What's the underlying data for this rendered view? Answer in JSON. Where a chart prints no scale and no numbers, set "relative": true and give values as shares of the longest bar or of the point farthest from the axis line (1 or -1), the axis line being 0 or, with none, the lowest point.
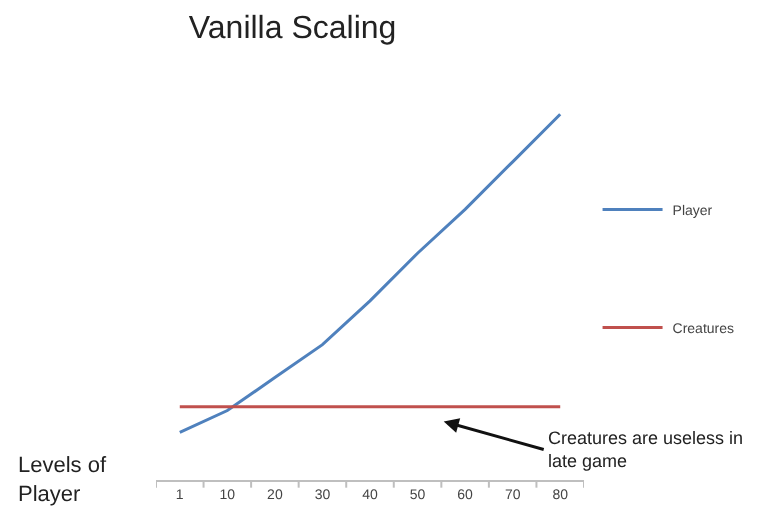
{
  "chart_data": {
    "type": "line",
    "title": "Vanilla Scaling",
    "xlabel": "Levels of\nPlayer",
    "relative": true,
    "categories": [
      "1",
      "10",
      "20",
      "30",
      "40",
      "50",
      "60",
      "70",
      "80"
    ],
    "series": [
      {
        "name": "Player",
        "color": "#4f81bd",
        "values": [
          0.13,
          0.19,
          0.28,
          0.37,
          0.49,
          0.62,
          0.74,
          0.87,
          1
        ]
      },
      {
        "name": "Creatures",
        "color": "#c0504d",
        "values": [
          0.2,
          0.2,
          0.2,
          0.2,
          0.2,
          0.2,
          0.2,
          0.2,
          0.2
        ]
      }
    ],
    "annotations": [
      "Creatures are useless in\nlate game"
    ],
    "legend": "right",
    "marker": "none",
    "line_style": "solid"
  }
}
